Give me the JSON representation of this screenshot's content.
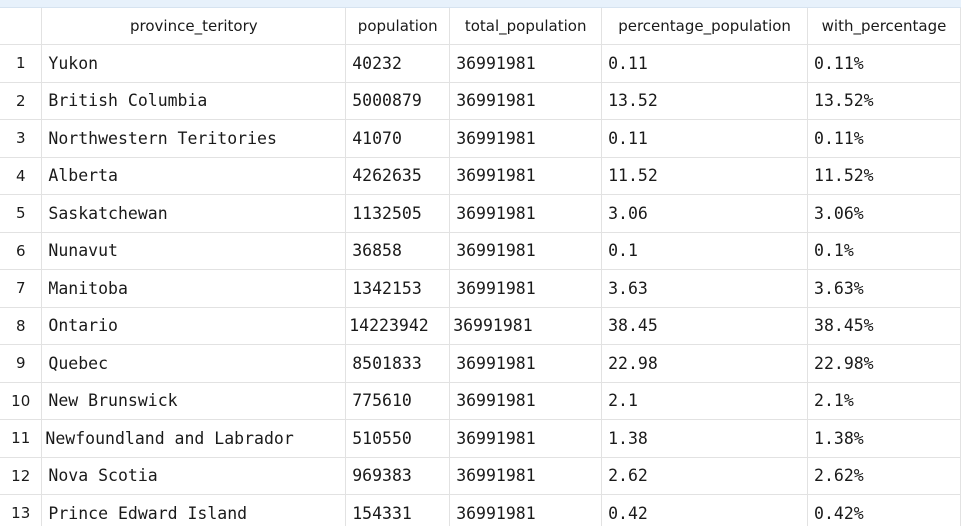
{
  "columns": [
    "province_teritory",
    "population",
    "total_population",
    "percentage_population",
    "with_percentage"
  ],
  "rows": [
    {
      "num": "1",
      "province": "Yukon",
      "population": "40232",
      "total": "36991981",
      "pct": "0.11",
      "with_pct": "0.11%"
    },
    {
      "num": "2",
      "province": "British Columbia",
      "population": "5000879",
      "total": "36991981",
      "pct": "13.52",
      "with_pct": "13.52%"
    },
    {
      "num": "3",
      "province": "Northwestern Teritories",
      "population": "41070",
      "total": "36991981",
      "pct": "0.11",
      "with_pct": "0.11%"
    },
    {
      "num": "4",
      "province": "Alberta",
      "population": "4262635",
      "total": "36991981",
      "pct": "11.52",
      "with_pct": "11.52%"
    },
    {
      "num": "5",
      "province": "Saskatchewan",
      "population": "1132505",
      "total": "36991981",
      "pct": "3.06",
      "with_pct": "3.06%"
    },
    {
      "num": "6",
      "province": "Nunavut",
      "population": "36858",
      "total": "36991981",
      "pct": "0.1",
      "with_pct": "0.1%"
    },
    {
      "num": "7",
      "province": "Manitoba",
      "population": "1342153",
      "total": "36991981",
      "pct": "3.63",
      "with_pct": "3.63%"
    },
    {
      "num": "8",
      "province": "Ontario",
      "population": "14223942",
      "total": "36991981",
      "pct": "38.45",
      "with_pct": "38.45%"
    },
    {
      "num": "9",
      "province": "Quebec",
      "population": "8501833",
      "total": "36991981",
      "pct": "22.98",
      "with_pct": "22.98%"
    },
    {
      "num": "10",
      "province": "New Brunswick",
      "population": "775610",
      "total": "36991981",
      "pct": "2.1",
      "with_pct": "2.1%"
    },
    {
      "num": "11",
      "province": "Newfoundland and Labrador",
      "population": "510550",
      "total": "36991981",
      "pct": "1.38",
      "with_pct": "1.38%"
    },
    {
      "num": "12",
      "province": "Nova Scotia",
      "population": "969383",
      "total": "36991981",
      "pct": "2.62",
      "with_pct": "2.62%"
    },
    {
      "num": "13",
      "province": "Prince Edward Island",
      "population": "154331",
      "total": "36991981",
      "pct": "0.42",
      "with_pct": "0.42%"
    }
  ]
}
